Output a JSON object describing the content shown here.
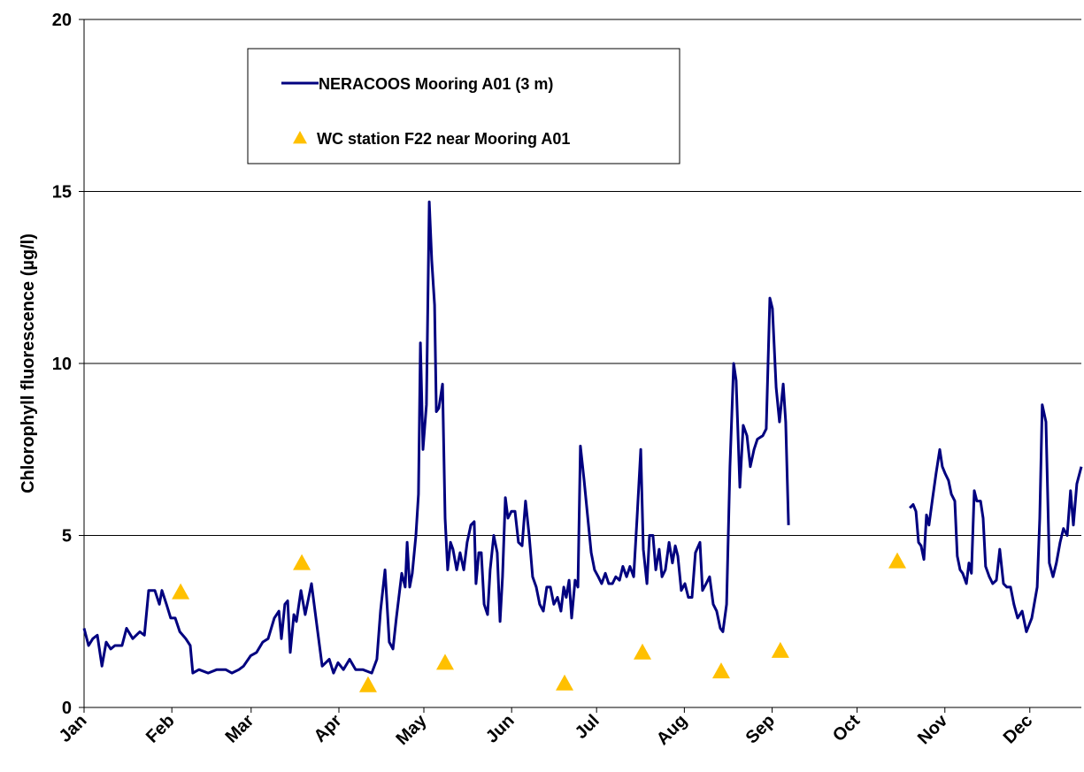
{
  "chart_data": {
    "type": "line",
    "y_label": "Chlorophyll fluorescence (µg/l)",
    "xlim": [
      0,
      352.2
    ],
    "xticks": [
      {
        "value": 0,
        "label": "Jan"
      },
      {
        "value": 31,
        "label": "Feb"
      },
      {
        "value": 59,
        "label": "Mar"
      },
      {
        "value": 90,
        "label": "Apr"
      },
      {
        "value": 120,
        "label": "May"
      },
      {
        "value": 151,
        "label": "Jun"
      },
      {
        "value": 181,
        "label": "Jul"
      },
      {
        "value": 212,
        "label": "Aug"
      },
      {
        "value": 243,
        "label": "Sep"
      },
      {
        "value": 273,
        "label": "Oct"
      },
      {
        "value": 304,
        "label": "Nov"
      },
      {
        "value": 334,
        "label": "Dec"
      }
    ],
    "ylim": [
      0,
      20
    ],
    "yticks": [
      0,
      5,
      10,
      15,
      20
    ],
    "grid": true,
    "series": [
      {
        "name": "NERACOOS Mooring A01 (3 m)",
        "color": "#00007f",
        "marker": "line",
        "x": [
          0,
          1.6,
          3.1,
          4.7,
          6.3,
          7.8,
          9.4,
          10.9,
          13.4,
          15,
          17.2,
          19.7,
          21.3,
          22.8,
          25,
          26.6,
          27.5,
          29.1,
          30.6,
          32.2,
          33.8,
          35.9,
          37.5,
          38.4,
          40.6,
          43.8,
          46.9,
          50,
          52.2,
          54.7,
          56.3,
          58.8,
          60.9,
          63.1,
          65,
          67.2,
          68.8,
          69.7,
          70.9,
          71.9,
          72.8,
          74.1,
          75,
          76.6,
          78.1,
          80.3,
          82.2,
          84.1,
          86.6,
          88.1,
          89.7,
          91.6,
          93.8,
          95.9,
          98.4,
          101.6,
          103.4,
          104.7,
          106.3,
          107.8,
          109.1,
          110.3,
          112.2,
          113.4,
          114.1,
          115,
          115.9,
          117.2,
          118.1,
          118.8,
          119.7,
          120.9,
          121.9,
          122.8,
          123.8,
          124.4,
          125.3,
          126.6,
          127.5,
          128.4,
          129.4,
          130.3,
          131.6,
          132.8,
          134.1,
          135.3,
          136.6,
          137.8,
          138.4,
          139.4,
          140.3,
          141.3,
          142.5,
          143.4,
          144.7,
          145.9,
          146.9,
          147.8,
          148.8,
          149.7,
          150.9,
          152.2,
          153.4,
          154.7,
          155.9,
          157.2,
          158.4,
          159.7,
          160.9,
          162.2,
          163.4,
          164.7,
          165.9,
          167.2,
          168.4,
          169.4,
          170.3,
          171.3,
          172.2,
          173.4,
          174.4,
          175.3,
          176.6,
          177.8,
          179.1,
          180.3,
          181.6,
          182.8,
          184.1,
          185.3,
          186.6,
          187.8,
          189.1,
          190.3,
          191.6,
          192.8,
          194.1,
          195.3,
          196.6,
          197.5,
          198.8,
          199.7,
          200.9,
          201.9,
          203.1,
          204.1,
          205.3,
          206.6,
          207.8,
          208.8,
          209.7,
          210.9,
          212.2,
          213.4,
          214.7,
          215.9,
          217.5,
          218.4,
          219.7,
          220.9,
          222.2,
          223.4,
          224.7,
          225.6,
          226.9,
          228.1,
          229.4,
          230.3,
          231.6,
          232.8,
          234.1,
          235.3,
          236.6,
          237.8,
          239.7,
          240.9,
          242.2,
          243.1,
          244.4,
          245.6,
          246.9,
          247.8,
          248.8,
          270,
          291.6,
          292.8,
          293.8,
          294.7,
          295.6,
          296.6,
          297.5,
          298.4,
          299.7,
          300.9,
          302.2,
          303.1,
          304.1,
          305.3,
          306.3,
          307.5,
          308.4,
          309.4,
          310.3,
          311.6,
          312.5,
          313.4,
          314.4,
          315.3,
          316.6,
          317.5,
          318.4,
          319.7,
          320.9,
          322.2,
          323.4,
          324.7,
          325.9,
          327.2,
          328.4,
          329.7,
          331.3,
          332.8,
          334.7,
          336.6,
          337.5,
          338.4,
          339.7,
          340.9,
          342.2,
          343.4,
          344.7,
          345.9,
          347.2,
          348.4,
          349.4,
          350.6,
          352.2
        ],
        "values": [
          2.3,
          1.8,
          2.0,
          2.1,
          1.2,
          1.9,
          1.7,
          1.8,
          1.8,
          2.3,
          2.0,
          2.2,
          2.1,
          3.4,
          3.4,
          3.0,
          3.4,
          3.0,
          2.6,
          2.6,
          2.2,
          2.0,
          1.8,
          1.0,
          1.1,
          1.0,
          1.1,
          1.1,
          1.0,
          1.1,
          1.2,
          1.5,
          1.6,
          1.9,
          2.0,
          2.6,
          2.8,
          2.0,
          3.0,
          3.1,
          1.6,
          2.7,
          2.5,
          3.4,
          2.7,
          3.6,
          2.4,
          1.2,
          1.4,
          1.0,
          1.3,
          1.1,
          1.4,
          1.1,
          1.1,
          1.0,
          1.4,
          2.8,
          4.0,
          1.9,
          1.7,
          2.6,
          3.9,
          3.5,
          4.8,
          3.5,
          3.9,
          5.0,
          6.2,
          10.6,
          7.5,
          8.8,
          14.7,
          13.0,
          11.7,
          8.6,
          8.7,
          9.4,
          5.5,
          4.0,
          4.8,
          4.6,
          4.0,
          4.5,
          4.0,
          4.8,
          5.3,
          5.4,
          3.6,
          4.5,
          4.5,
          3.0,
          2.7,
          4.0,
          5.0,
          4.5,
          2.5,
          3.8,
          6.1,
          5.5,
          5.7,
          5.7,
          4.8,
          4.7,
          6.0,
          5.0,
          3.8,
          3.5,
          3.0,
          2.8,
          3.5,
          3.5,
          3.0,
          3.2,
          2.8,
          3.5,
          3.2,
          3.7,
          2.6,
          3.7,
          3.5,
          7.6,
          6.6,
          5.6,
          4.5,
          4.0,
          3.8,
          3.6,
          3.9,
          3.6,
          3.6,
          3.8,
          3.7,
          4.1,
          3.8,
          4.1,
          3.8,
          5.5,
          7.5,
          4.6,
          3.6,
          5.0,
          5.0,
          4.0,
          4.6,
          3.8,
          4.0,
          4.8,
          4.2,
          4.7,
          4.4,
          3.4,
          3.6,
          3.2,
          3.2,
          4.5,
          4.8,
          3.4,
          3.6,
          3.8,
          3.0,
          2.8,
          2.3,
          2.2,
          3.0,
          7.0,
          10.0,
          9.5,
          6.4,
          8.2,
          7.9,
          7.0,
          7.5,
          7.8,
          7.9,
          8.1,
          11.9,
          11.6,
          9.3,
          8.3,
          9.4,
          8.3,
          5.3,
          null,
          5.8,
          5.9,
          5.7,
          4.8,
          4.7,
          4.3,
          5.6,
          5.3,
          6.1,
          6.8,
          7.5,
          7.0,
          6.8,
          6.6,
          6.2,
          6.0,
          4.4,
          4.0,
          3.9,
          3.6,
          4.2,
          3.9,
          6.3,
          6.0,
          6.0,
          5.5,
          4.1,
          3.8,
          3.6,
          3.7,
          4.6,
          3.6,
          3.5,
          3.5,
          3.0,
          2.6,
          2.8,
          2.2,
          2.6,
          3.5,
          5.5,
          8.8,
          8.3,
          4.2,
          3.8,
          4.2,
          4.8,
          5.2,
          5.0,
          6.3,
          5.3,
          6.5,
          7.0
        ]
      },
      {
        "name": "WC station F22 near Mooring A01",
        "color": "#ffc000",
        "marker": "triangle",
        "x": [
          34.1,
          76.9,
          100.3,
          127.5,
          169.7,
          197.2,
          225,
          245.9,
          287.2
        ],
        "values": [
          3.35,
          4.2,
          0.65,
          1.3,
          0.7,
          1.6,
          1.05,
          1.65,
          4.25
        ]
      }
    ]
  }
}
